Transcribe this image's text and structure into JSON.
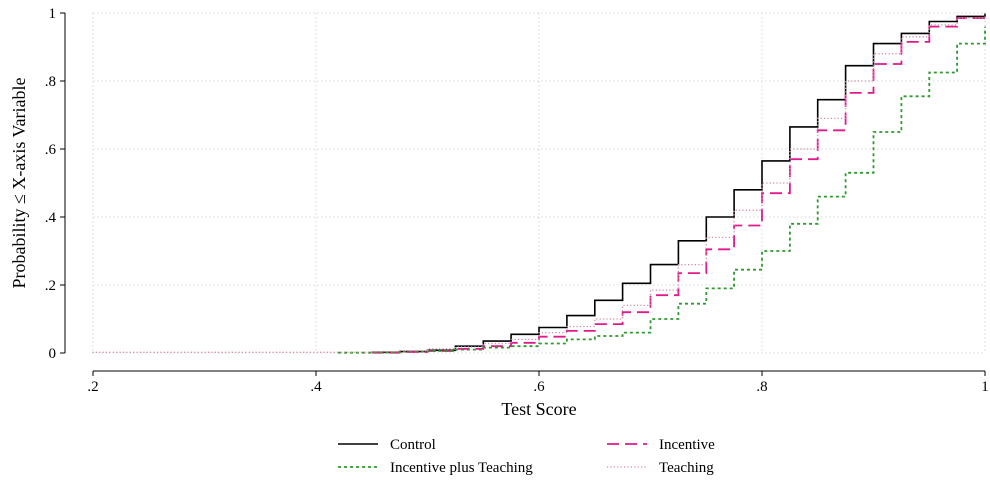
{
  "chart_data": {
    "type": "line",
    "step": true,
    "title": "",
    "xlabel": "Test Score",
    "ylabel": "Probability ≤ X-axis Variable",
    "xlim": [
      0.2,
      1.0
    ],
    "ylim": [
      0,
      1
    ],
    "grid": true,
    "legend_position": "bottom",
    "xticks": [
      {
        "value": 0.2,
        "label": ".2"
      },
      {
        "value": 0.4,
        "label": ".4"
      },
      {
        "value": 0.6,
        "label": ".6"
      },
      {
        "value": 0.8,
        "label": ".8"
      },
      {
        "value": 1.0,
        "label": "1"
      }
    ],
    "yticks": [
      {
        "value": 0,
        "label": "0"
      },
      {
        "value": 0.2,
        "label": ".2"
      },
      {
        "value": 0.4,
        "label": ".4"
      },
      {
        "value": 0.6,
        "label": ".6"
      },
      {
        "value": 0.8,
        "label": ".8"
      },
      {
        "value": 1.0,
        "label": "1"
      }
    ],
    "series": [
      {
        "name": "Control",
        "color": "#000000",
        "style": "solid",
        "x": [
          0.45,
          0.475,
          0.5,
          0.525,
          0.55,
          0.575,
          0.6,
          0.625,
          0.65,
          0.675,
          0.7,
          0.725,
          0.75,
          0.775,
          0.8,
          0.825,
          0.85,
          0.875,
          0.9,
          0.925,
          0.95,
          0.975,
          1.0
        ],
        "y": [
          0.002,
          0.004,
          0.008,
          0.02,
          0.035,
          0.055,
          0.075,
          0.11,
          0.155,
          0.205,
          0.26,
          0.33,
          0.4,
          0.48,
          0.565,
          0.665,
          0.745,
          0.845,
          0.91,
          0.94,
          0.975,
          0.99,
          1.0
        ]
      },
      {
        "name": "Incentive",
        "color": "#e0198c",
        "style": "dashed",
        "x": [
          0.45,
          0.475,
          0.5,
          0.525,
          0.55,
          0.575,
          0.6,
          0.625,
          0.65,
          0.675,
          0.7,
          0.725,
          0.75,
          0.775,
          0.8,
          0.825,
          0.85,
          0.875,
          0.9,
          0.925,
          0.95,
          0.975,
          1.0
        ],
        "y": [
          0.001,
          0.003,
          0.006,
          0.012,
          0.02,
          0.03,
          0.048,
          0.065,
          0.085,
          0.12,
          0.17,
          0.235,
          0.305,
          0.375,
          0.47,
          0.57,
          0.655,
          0.765,
          0.85,
          0.915,
          0.96,
          0.985,
          1.0
        ]
      },
      {
        "name": "Incentive plus Teaching",
        "color": "#2e9a2e",
        "style": "dotted",
        "x": [
          0.42,
          0.45,
          0.475,
          0.5,
          0.525,
          0.55,
          0.575,
          0.6,
          0.625,
          0.65,
          0.675,
          0.7,
          0.725,
          0.75,
          0.775,
          0.8,
          0.825,
          0.85,
          0.875,
          0.9,
          0.925,
          0.95,
          0.975,
          1.0
        ],
        "y": [
          0.001,
          0.002,
          0.004,
          0.006,
          0.01,
          0.016,
          0.02,
          0.028,
          0.04,
          0.05,
          0.06,
          0.1,
          0.145,
          0.19,
          0.245,
          0.3,
          0.38,
          0.46,
          0.53,
          0.65,
          0.755,
          0.825,
          0.91,
          0.96
        ]
      },
      {
        "name": "Teaching",
        "color": "#d08aa8",
        "style": "fine-dotted",
        "x": [
          0.2,
          0.45,
          0.475,
          0.5,
          0.525,
          0.55,
          0.575,
          0.6,
          0.625,
          0.65,
          0.675,
          0.7,
          0.725,
          0.75,
          0.775,
          0.8,
          0.825,
          0.85,
          0.875,
          0.9,
          0.925,
          0.95,
          0.975,
          1.0
        ],
        "y": [
          0.002,
          0.004,
          0.007,
          0.012,
          0.018,
          0.028,
          0.04,
          0.06,
          0.078,
          0.1,
          0.14,
          0.185,
          0.26,
          0.34,
          0.42,
          0.5,
          0.6,
          0.69,
          0.8,
          0.88,
          0.93,
          0.965,
          0.985,
          1.0
        ]
      }
    ]
  }
}
